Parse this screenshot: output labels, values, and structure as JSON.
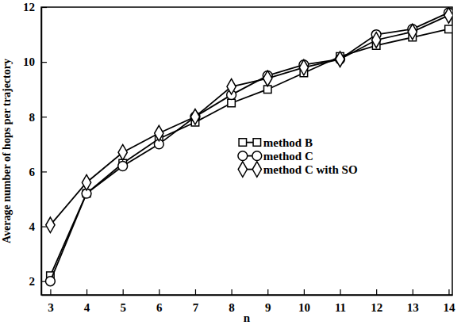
{
  "chart_data": {
    "type": "line",
    "x_label": "n",
    "y_label": "Average number of hops per trajectory",
    "x": [
      3,
      4,
      5,
      6,
      7,
      8,
      9,
      10,
      11,
      12,
      13,
      14
    ],
    "series": [
      {
        "name": "method B",
        "color": "#000000",
        "marker": "square",
        "line_style": "solid",
        "values": [
          2.2,
          5.2,
          6.3,
          7.2,
          7.8,
          8.5,
          9.0,
          9.6,
          10.2,
          10.6,
          10.9,
          11.2
        ]
      },
      {
        "name": "method C",
        "color": "#000000",
        "marker": "circle",
        "line_style": "solid",
        "values": [
          2.0,
          5.2,
          6.2,
          7.0,
          8.0,
          8.8,
          9.5,
          9.9,
          10.1,
          11.0,
          11.2,
          11.8
        ]
      },
      {
        "name": "method C with SO",
        "color": "#000000",
        "marker": "diamond",
        "line_style": "solid",
        "values": [
          4.05,
          5.6,
          6.7,
          7.4,
          8.0,
          9.1,
          9.4,
          9.8,
          10.1,
          10.8,
          11.1,
          11.7
        ]
      }
    ],
    "xlim": [
      2.75,
      14.1
    ],
    "ylim": [
      1.5,
      12
    ],
    "xticks": [
      3,
      4,
      5,
      6,
      7,
      8,
      9,
      10,
      11,
      12,
      13,
      14
    ],
    "yticks": [
      2,
      4,
      6,
      8,
      10,
      12
    ],
    "legend": "right",
    "grid": false
  }
}
